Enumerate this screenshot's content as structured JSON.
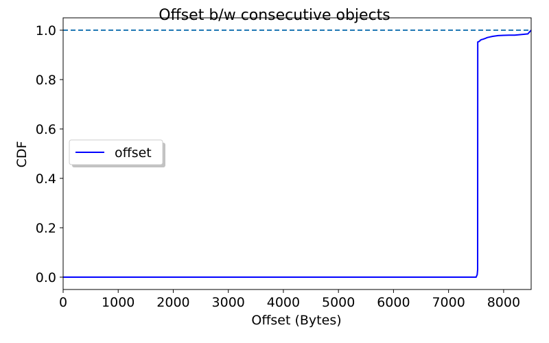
{
  "chart_data": {
    "type": "line",
    "title": "Offset b/w consecutive objects",
    "xlabel": "Offset (Bytes)",
    "ylabel": "CDF",
    "xlim": [
      0,
      8500
    ],
    "ylim": [
      -0.05,
      1.05
    ],
    "xticks": [
      0,
      1000,
      2000,
      3000,
      4000,
      5000,
      6000,
      7000,
      8000
    ],
    "yticks": [
      0.0,
      0.2,
      0.4,
      0.6,
      0.8,
      1.0
    ],
    "ytick_labels": [
      "0.0",
      "0.2",
      "0.4",
      "0.6",
      "0.8",
      "1.0"
    ],
    "grid": false,
    "legend_position": "center-left",
    "series": [
      {
        "name": "offset",
        "color": "#0000ff",
        "x": [
          0,
          7500,
          7520,
          7528,
          7530,
          7560,
          7580,
          7600,
          7620,
          7660,
          7700,
          7740,
          7800,
          7900,
          8000,
          8100,
          8200,
          8300,
          8440,
          8460,
          8480,
          8500
        ],
        "y": [
          0.0,
          0.0,
          0.01,
          0.03,
          0.952,
          0.955,
          0.96,
          0.962,
          0.963,
          0.966,
          0.97,
          0.972,
          0.975,
          0.978,
          0.979,
          0.98,
          0.98,
          0.982,
          0.985,
          0.99,
          0.995,
          1.0
        ]
      }
    ],
    "reference_line": {
      "y": 1.0,
      "color": "#1f77b4",
      "style": "dashed"
    }
  }
}
